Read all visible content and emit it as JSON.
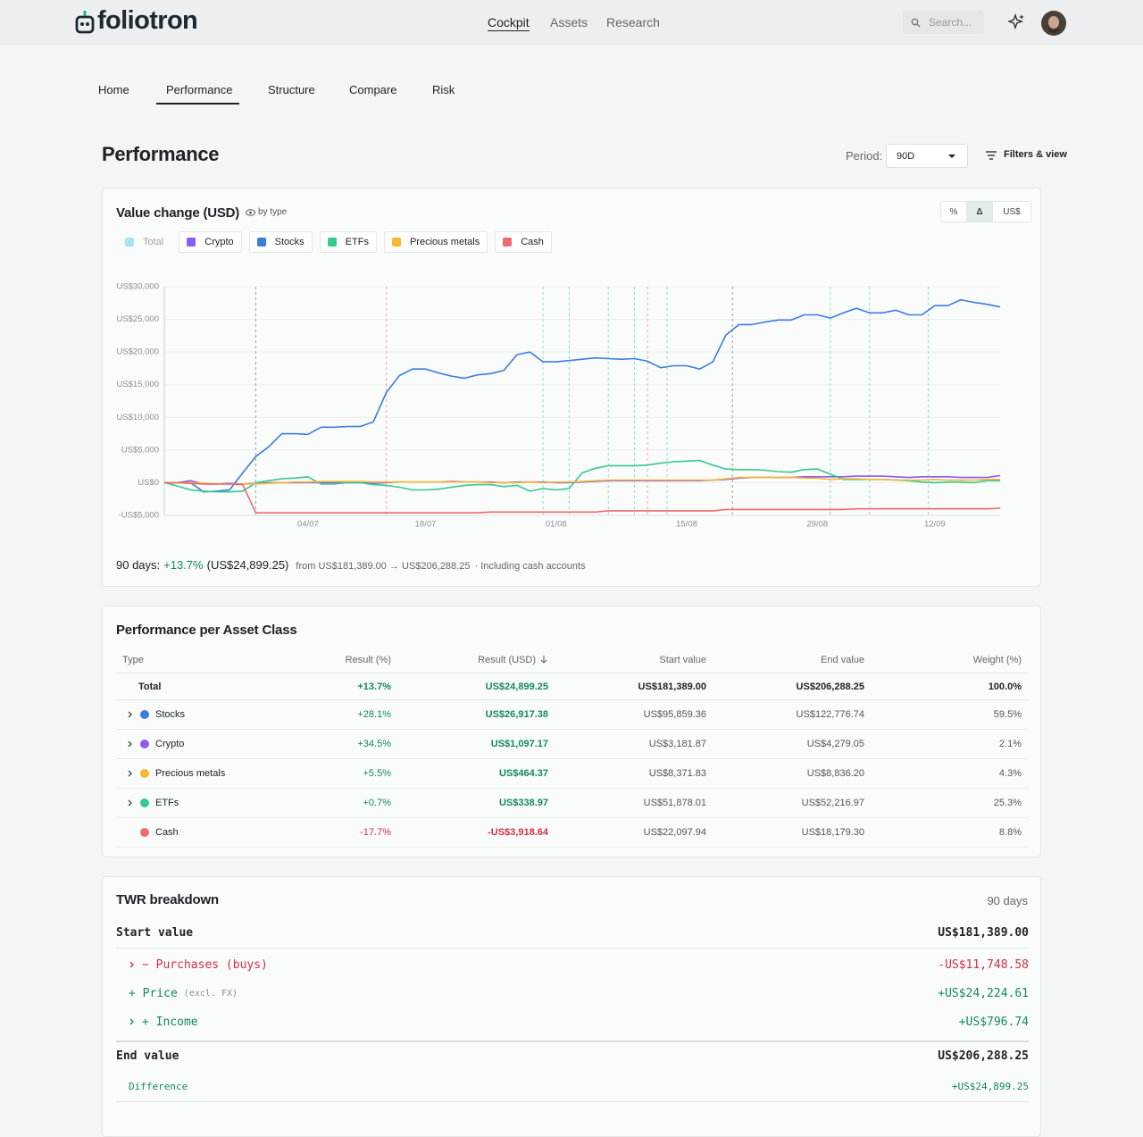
{
  "header": {
    "logo": "foliotron",
    "nav": [
      "Cockpit",
      "Assets",
      "Research"
    ],
    "search_placeholder": "Search..."
  },
  "tabs": [
    "Home",
    "Performance",
    "Structure",
    "Compare",
    "Risk"
  ],
  "page": {
    "title": "Performance",
    "period_label": "Period:",
    "period": "90D",
    "filters": "Filters & view"
  },
  "chart_data": {
    "type": "line",
    "title": "Value change (USD)",
    "view": "by type",
    "modes": [
      "%",
      "Δ",
      "US$"
    ],
    "active_mode": 1,
    "categories": [
      null,
      null,
      null,
      null,
      null,
      null,
      null,
      null,
      null,
      null,
      null,
      "04/07",
      null,
      null,
      null,
      null,
      null,
      null,
      null,
      null,
      "18/07",
      null,
      null,
      null,
      null,
      null,
      null,
      null,
      null,
      null,
      "01/08",
      null,
      null,
      null,
      null,
      null,
      null,
      null,
      null,
      null,
      "15/08",
      null,
      null,
      null,
      null,
      null,
      null,
      null,
      null,
      null,
      "29/08",
      null,
      null,
      null,
      null,
      null,
      null,
      null,
      null,
      "12/09",
      null,
      null,
      null,
      null,
      null
    ],
    "ylim": [
      -5000,
      30000
    ],
    "yticks": [
      {
        "value": -5000,
        "label": "-US$5,000"
      },
      {
        "value": 0,
        "label": "US$0"
      },
      {
        "value": 5000,
        "label": "US$5,000"
      },
      {
        "value": 10000,
        "label": "US$10,000"
      },
      {
        "value": 15000,
        "label": "US$15,000"
      },
      {
        "value": 20000,
        "label": "US$20,000"
      },
      {
        "value": 25000,
        "label": "US$25,000"
      },
      {
        "value": 30000,
        "label": "US$30,000"
      }
    ],
    "grid": true,
    "series": [
      {
        "name": "Total",
        "color": "#a6e6ee",
        "visible": false
      },
      {
        "name": "Crypto",
        "color": "#8b5cf6",
        "values": [
          0,
          0,
          300,
          -200,
          -200,
          -100,
          -200,
          -100,
          0,
          0,
          0,
          0,
          0,
          0,
          0,
          0,
          -100,
          0,
          100,
          100,
          100,
          100,
          200,
          100,
          100,
          100,
          0,
          100,
          100,
          100,
          0,
          0,
          100,
          200,
          300,
          300,
          300,
          300,
          300,
          300,
          300,
          300,
          400,
          500,
          700,
          800,
          800,
          800,
          800,
          900,
          900,
          900,
          900,
          1000,
          1000,
          1000,
          900,
          800,
          900,
          900,
          900,
          800,
          800,
          800,
          1100
        ]
      },
      {
        "name": "Stocks",
        "color": "#3b7ddd",
        "values": [
          0,
          0,
          0,
          -1400,
          -1300,
          -1100,
          1500,
          4000,
          5500,
          7500,
          7500,
          7400,
          8500,
          8500,
          8600,
          8600,
          9300,
          13800,
          16400,
          17400,
          17400,
          16800,
          16300,
          16000,
          16500,
          16700,
          17200,
          19600,
          20000,
          18500,
          18500,
          18700,
          18900,
          19100,
          19000,
          18900,
          19000,
          18600,
          17600,
          17900,
          17900,
          17400,
          18500,
          22600,
          24200,
          24200,
          24600,
          24900,
          24900,
          25700,
          25700,
          25200,
          26000,
          26700,
          26000,
          26000,
          26400,
          25700,
          25700,
          27100,
          27100,
          28000,
          27600,
          27300,
          26900
        ]
      },
      {
        "name": "ETFs",
        "color": "#34c98e",
        "values": [
          0,
          -500,
          -1100,
          -1300,
          -1400,
          -1400,
          -1300,
          0,
          300,
          600,
          700,
          900,
          -200,
          -200,
          0,
          0,
          -300,
          -400,
          -700,
          -1100,
          -1100,
          -1000,
          -700,
          -400,
          -300,
          -300,
          -600,
          -400,
          -1300,
          -900,
          -1100,
          -900,
          1500,
          2200,
          2600,
          2600,
          2600,
          2700,
          3000,
          3200,
          3300,
          3400,
          2700,
          2100,
          2000,
          2000,
          1900,
          1700,
          1600,
          2000,
          2100,
          1300,
          500,
          500,
          500,
          500,
          400,
          300,
          100,
          0,
          100,
          100,
          0,
          300,
          300
        ]
      },
      {
        "name": "Precious metals",
        "color": "#f5b82e",
        "values": [
          0,
          0,
          0,
          -100,
          -200,
          -200,
          -200,
          -200,
          -100,
          0,
          100,
          100,
          200,
          200,
          200,
          200,
          100,
          100,
          100,
          100,
          100,
          100,
          100,
          100,
          100,
          0,
          0,
          0,
          100,
          0,
          100,
          100,
          200,
          300,
          400,
          400,
          400,
          400,
          400,
          400,
          400,
          400,
          400,
          600,
          800,
          800,
          800,
          800,
          800,
          700,
          700,
          500,
          600,
          600,
          500,
          500,
          400,
          400,
          400,
          500,
          400,
          400,
          400,
          500,
          500
        ]
      },
      {
        "name": "Cash",
        "color": "#ee6b6b",
        "values": [
          0,
          0,
          -100,
          -200,
          -200,
          -200,
          -300,
          -4600,
          -4600,
          -4600,
          -4600,
          -4600,
          -4600,
          -4600,
          -4600,
          -4600,
          -4600,
          -4600,
          -4600,
          -4600,
          -4600,
          -4600,
          -4600,
          -4600,
          -4600,
          -4500,
          -4500,
          -4500,
          -4500,
          -4500,
          -4500,
          -4500,
          -4500,
          -4500,
          -4300,
          -4300,
          -4300,
          -4300,
          -4300,
          -4300,
          -4300,
          -4300,
          -4300,
          -4100,
          -4100,
          -4100,
          -4100,
          -4100,
          -4100,
          -4100,
          -4100,
          -4100,
          -4100,
          -4000,
          -4000,
          -4000,
          -4000,
          -4000,
          -4000,
          -4000,
          -4000,
          -4000,
          -4000,
          -4000,
          -3900
        ]
      }
    ],
    "events": [
      {
        "x": 7,
        "color": "#9aa0a4"
      },
      {
        "x": 17,
        "color": "#f2a3a8"
      },
      {
        "x": 29,
        "color": "#8fdccf"
      },
      {
        "x": 31,
        "color": "#8fdccf"
      },
      {
        "x": 34,
        "color": "#8fdccf"
      },
      {
        "x": 36,
        "color": "#8fdccf"
      },
      {
        "x": 37,
        "color": "#f2a3a8"
      },
      {
        "x": 38.5,
        "color": "#8fdccf"
      },
      {
        "x": 43.5,
        "color": "#9aa0a4"
      },
      {
        "x": 51,
        "color": "#8fdccf"
      },
      {
        "x": 54,
        "color": "#8fdccf"
      },
      {
        "x": 58.5,
        "color": "#8fdccf"
      }
    ]
  },
  "summary": {
    "label": "90 days:",
    "pct": "+13.7%",
    "abs": "(US$24,899.25)",
    "range": "from US$181,389.00 → US$206,288.25",
    "note": "· Including cash accounts"
  },
  "table": {
    "title": "Performance per Asset Class",
    "columns": [
      "Type",
      "Result (%)",
      "Result (USD)",
      "Start value",
      "End value",
      "Weight (%)"
    ],
    "sorted_column": 2,
    "rows": [
      {
        "cells": [
          "Total",
          "+13.7%",
          "US$24,899.25",
          "US$181,389.00",
          "US$206,288.25",
          "100.0%"
        ],
        "tone": "gain",
        "total": true
      },
      {
        "cells": [
          "Stocks",
          "+28.1%",
          "US$26,917.38",
          "US$95,859.36",
          "US$122,776.74",
          "59.5%"
        ],
        "tone": "gain",
        "color": "#3b7ddd",
        "expandable": true
      },
      {
        "cells": [
          "Crypto",
          "+34.5%",
          "US$1,097.17",
          "US$3,181.87",
          "US$4,279.05",
          "2.1%"
        ],
        "tone": "gain",
        "color": "#8b5cf6",
        "expandable": true
      },
      {
        "cells": [
          "Precious metals",
          "+5.5%",
          "US$464.37",
          "US$8,371.83",
          "US$8,836.20",
          "4.3%"
        ],
        "tone": "gain",
        "color": "#f5b82e",
        "expandable": true
      },
      {
        "cells": [
          "ETFs",
          "+0.7%",
          "US$338.97",
          "US$51,878.01",
          "US$52,216.97",
          "25.3%"
        ],
        "tone": "gain",
        "color": "#34c98e",
        "expandable": true
      },
      {
        "cells": [
          "Cash",
          "-17.7%",
          "-US$3,918.64",
          "US$22,097.94",
          "US$18,179.30",
          "8.8%"
        ],
        "tone": "loss",
        "color": "#ee6b6b",
        "expandable": false
      }
    ]
  },
  "twr": {
    "title": "TWR breakdown",
    "period": "90 days",
    "start": {
      "label": "Start value",
      "value": "US$181,389.00"
    },
    "items": [
      {
        "label": "− Purchases (buys)",
        "value": "-US$11,748.58",
        "tone": "loss",
        "expandable": true
      },
      {
        "label": "+ Price",
        "note": "(excl. FX)",
        "value": "+US$24,224.61",
        "tone": "gain",
        "expandable": false
      },
      {
        "label": "+ Income",
        "value": "+US$796.74",
        "tone": "gain",
        "expandable": true
      }
    ],
    "end": {
      "label": "End value",
      "value": "US$206,288.25"
    },
    "difference": {
      "label": "Difference",
      "value": "+US$24,899.25"
    }
  }
}
